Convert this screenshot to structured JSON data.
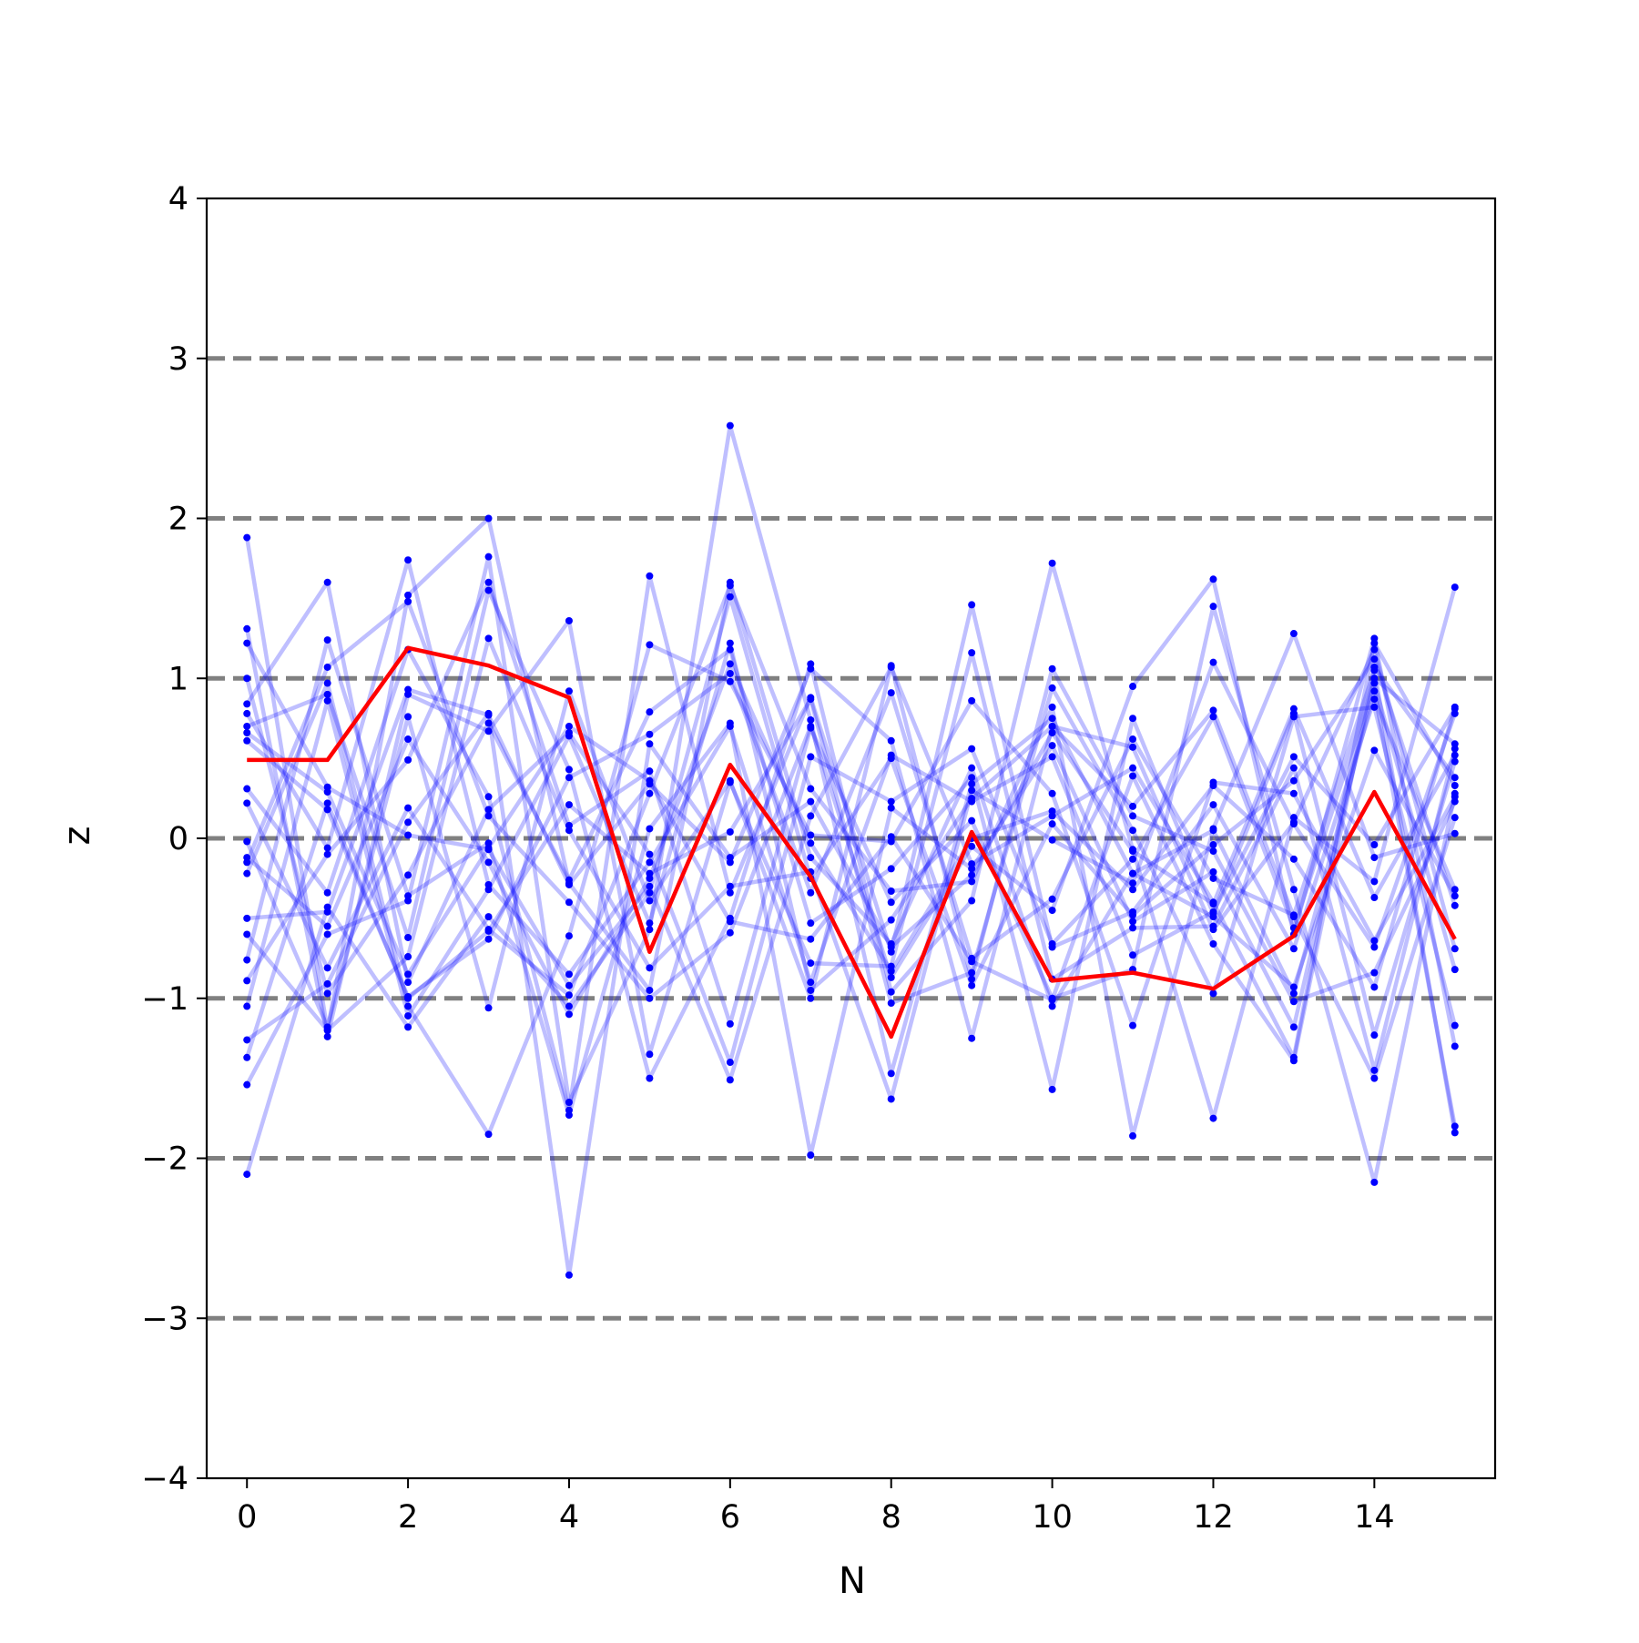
{
  "chart_data": {
    "type": "line",
    "title": "",
    "xlabel": "N",
    "ylabel": "z",
    "xlim": [
      -0.5,
      15.5
    ],
    "ylim": [
      -4,
      4
    ],
    "x_ticks": [
      0,
      2,
      4,
      6,
      8,
      10,
      12,
      14
    ],
    "x_tick_labels": [
      "0",
      "2",
      "4",
      "6",
      "8",
      "10",
      "12",
      "14"
    ],
    "y_ticks": [
      -4,
      -3,
      -2,
      -1,
      0,
      1,
      2,
      3,
      4
    ],
    "y_tick_labels": [
      "−4",
      "−3",
      "−2",
      "−1",
      "0",
      "1",
      "2",
      "3",
      "4"
    ],
    "reference_lines": {
      "y": [
        -3,
        -2,
        -1,
        0,
        1,
        2,
        3
      ],
      "style": "dashed",
      "color": "#808080"
    },
    "x": [
      0,
      1,
      2,
      3,
      4,
      5,
      6,
      7,
      8,
      9,
      10,
      11,
      12,
      13,
      14,
      15
    ],
    "background_series_style": {
      "line_color": "#0000ff",
      "line_opacity": 0.25,
      "marker_color": "#0000ff"
    },
    "highlight_series_style": {
      "color": "#ff0000"
    },
    "background_series": [
      [
        1.88,
        -1.2,
        1.52,
        2.0,
        -0.28,
        -0.95,
        1.6,
        -0.12,
        -0.66,
        0.44,
        -1.05,
        -0.22,
        -0.49,
        -0.93,
        0.55,
        -0.36
      ],
      [
        -2.1,
        -0.43,
        -1.18,
        -0.49,
        -1.05,
        -0.34,
        1.51,
        -0.25,
        0.5,
        -0.92,
        0.09,
        -0.48,
        -0.04,
        0.36,
        1.12,
        -0.42
      ],
      [
        1.31,
        -1.24,
        0.9,
        0.67,
        1.36,
        -1.35,
        0.35,
        -0.78,
        -0.8,
        1.16,
        -0.88,
        -0.56,
        -0.55,
        0.44,
        -1.45,
        0.56
      ],
      [
        -1.54,
        -0.6,
        -0.39,
        1.76,
        -1.65,
        -0.57,
        2.58,
        0.74,
        -1.47,
        0.34,
        0.75,
        -0.22,
        0.05,
        -0.97,
        0.92,
        -1.8
      ],
      [
        1.22,
        0.32,
        0.02,
        -0.07,
        -0.92,
        -0.3,
        -1.51,
        0.14,
        1.07,
        -0.16,
        0.14,
        0.44,
        -0.4,
        -1.37,
        1.22,
        0.33
      ],
      [
        1.0,
        -0.97,
        -0.23,
        0.72,
        -0.26,
        0.79,
        1.18,
        -0.53,
        -0.19,
        0.38,
        -1.57,
        0.75,
        -0.47,
        0.78,
        -1.23,
        0.48
      ],
      [
        0.84,
        1.6,
        -0.9,
        0.18,
        0.66,
        -0.1,
        -1.4,
        0.51,
        0.23,
        0.56,
        -0.66,
        -0.13,
        0.76,
        -0.56,
        0.97,
        -0.82
      ],
      [
        0.78,
        -0.06,
        1.74,
        -0.29,
        -0.85,
        -0.15,
        0.7,
        -0.9,
        0.52,
        0.23,
        0.51,
        -0.73,
        -0.46,
        0.51,
        -0.04,
        0.81
      ],
      [
        0.7,
        0.9,
        -0.62,
        1.55,
        0.43,
        -1.5,
        -0.5,
        1.09,
        -0.96,
        -0.39,
        1.72,
        -0.07,
        -1.75,
        0.13,
        -0.27,
        1.57
      ],
      [
        0.61,
        0.18,
        -0.99,
        -0.63,
        0.38,
        0.65,
        1.03,
        -0.34,
        0.91,
        -0.75,
        -0.38,
        0.62,
        -0.25,
        -0.48,
        1.05,
        -1.84
      ],
      [
        0.31,
        -0.34,
        1.18,
        0.26,
        -1.7,
        1.64,
        -0.34,
        0.88,
        -0.71,
        1.46,
        -0.68,
        -0.46,
        0.21,
        -0.69,
        0.87,
        -0.32
      ],
      [
        0.22,
        -0.81,
        0.19,
        -0.57,
        -0.98,
        0.28,
        1.58,
        0.31,
        -0.33,
        -0.27,
        0.82,
        -1.86,
        0.06,
        1.28,
        -0.12,
        0.03
      ],
      [
        -0.02,
        -1.18,
        0.76,
        -1.06,
        0.92,
        -0.39,
        0.36,
        -1.0,
        1.08,
        -0.88,
        1.06,
        0.14,
        -0.08,
        -1.02,
        -0.84,
        0.23
      ],
      [
        -0.15,
        1.07,
        1.48,
        0.14,
        -0.4,
        -1.0,
        -0.59,
        0.7,
        -0.87,
        -0.05,
        -0.45,
        0.95,
        1.62,
        -0.6,
        1.25,
        -1.3
      ],
      [
        -0.22,
        0.97,
        -1.05,
        -1.85,
        -0.61,
        1.21,
        0.98,
        0.02,
        -0.02,
        0.86,
        0.28,
        -1.17,
        0.35,
        0.28,
        -0.64,
        0.26
      ],
      [
        -0.5,
        -0.46,
        0.93,
        0.77,
        -0.29,
        0.34,
        -0.15,
        1.06,
        0.61,
        -1.25,
        0.7,
        0.2,
        0.8,
        -0.49,
        -1.5,
        0.13
      ],
      [
        -0.6,
        -1.2,
        -0.74,
        1.25,
        0.05,
        -0.81,
        -0.3,
        -0.21,
        -1.63,
        0.3,
        -0.01,
        -0.28,
        1.1,
        0.09,
        -0.68,
        0.78
      ],
      [
        -0.76,
        1.24,
        -0.36,
        -0.03,
        -1.73,
        0.06,
        0.72,
        -1.98,
        0.19,
        -0.19,
        0.58,
        -0.52,
        -0.21,
        -1.18,
        1.0,
        0.59
      ],
      [
        -0.89,
        -0.1,
        0.49,
        1.6,
        0.08,
        0.42,
        -1.16,
        0.69,
        -0.4,
        0.11,
        -1.0,
        -0.82,
        1.45,
        -0.32,
        -2.15,
        0.28
      ],
      [
        -1.05,
        0.86,
        -1.11,
        -0.32,
        0.64,
        -0.53,
        1.22,
        -0.95,
        -0.51,
        0.25,
        0.7,
        0.57,
        -0.57,
        0.1,
        1.18,
        -0.69
      ],
      [
        -1.26,
        -0.91,
        0.1,
        0.78,
        -2.73,
        0.59,
        -0.12,
        0.23,
        -0.68,
        -0.23,
        0.66,
        -0.08,
        -0.41,
        0.81,
        -0.37,
        0.52
      ],
      [
        -1.37,
        0.22,
        -1.0,
        -0.58,
        0.21,
        -0.22,
        0.04,
        0.87,
        -1.03,
        -0.84,
        0.94,
        0.05,
        -0.97,
        0.76,
        0.82,
        -1.17
      ],
      [
        0.66,
        0.29,
        -0.85,
        -0.06,
        0.7,
        0.36,
        -0.52,
        -0.63,
        0.01,
        -0.77,
        -1.01,
        0.39,
        -0.66,
        -1.39,
        1.07,
        0.38
      ],
      [
        -0.12,
        -0.55,
        0.62,
        -0.15,
        -1.1,
        -0.25,
        1.09,
        -0.03,
        -0.83,
        0.0,
        0.17,
        -0.32,
        0.33,
        -0.13,
        -0.93,
        0.82
      ]
    ],
    "highlight_series": {
      "values": [
        0.49,
        0.49,
        1.19,
        1.08,
        0.88,
        -0.71,
        0.46,
        -0.24,
        -1.24,
        0.04,
        -0.89,
        -0.84,
        -0.94,
        -0.61,
        0.29,
        -0.63
      ]
    },
    "grid": false,
    "legend": "none"
  }
}
